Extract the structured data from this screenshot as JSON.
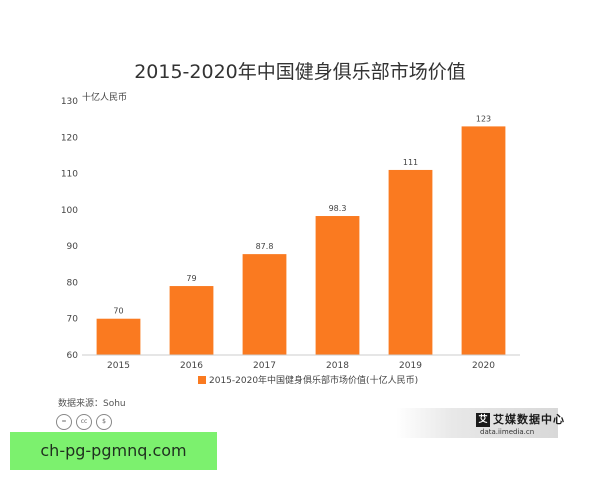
{
  "chart_data": {
    "type": "bar",
    "title": "2015-2020年中国健身俱乐部市场价值",
    "ylabel": "十亿人民币",
    "xlabel": "",
    "categories": [
      "2015",
      "2016",
      "2017",
      "2018",
      "2019",
      "2020"
    ],
    "series": [
      {
        "name": "2015-2020年中国健身俱乐部市场价值(十亿人民币)",
        "values": [
          70,
          79,
          87.8,
          98.3,
          111,
          123
        ]
      }
    ],
    "data_labels": [
      "70",
      "79",
      "87.8",
      "98.3",
      "111",
      "123"
    ],
    "ylim": [
      60,
      130
    ],
    "yticks": [
      60,
      70,
      80,
      90,
      100,
      110,
      120,
      130
    ],
    "grid": false,
    "legend": "bottom",
    "colors": {
      "bar": "#fa7a20",
      "axis": "#cccccc"
    }
  },
  "footer": {
    "source": "数据来源：Sohu",
    "license_icons": [
      "=",
      "cc",
      "$"
    ],
    "brand_logo": "艾",
    "brand_name": "艾媒数据中心",
    "brand_url": "data.iimedia.cn"
  },
  "watermark": "ch-pg-pgmnq.com"
}
